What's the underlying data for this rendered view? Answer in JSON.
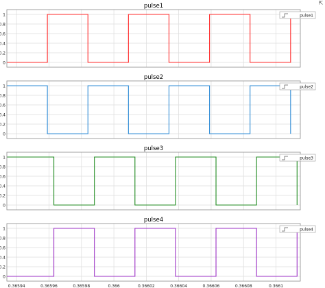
{
  "toolbar": {
    "undock_icon": "undock-arrow-icon"
  },
  "x_ticks": [
    "0.36594",
    "0.36596",
    "0.36598",
    "0.366",
    "0.36602",
    "0.36604",
    "0.36606",
    "0.36608",
    "0.3661"
  ],
  "y_ticks": [
    "0",
    "0.2",
    "0.4",
    "0.6",
    "0.8",
    "1"
  ],
  "chart_data": [
    {
      "type": "line",
      "title": "pulse1",
      "legend": "pulse1",
      "legend_position": "top-right",
      "grid": true,
      "color": "#ff2a2a",
      "xlim": [
        0.365934,
        0.366115
      ],
      "ylim": [
        -0.1,
        1.1
      ],
      "x": [
        0.365934,
        0.365959,
        0.365959,
        0.365984,
        0.365984,
        0.366009,
        0.366009,
        0.366034,
        0.366034,
        0.366059,
        0.366059,
        0.366084,
        0.366084,
        0.366109,
        0.366109
      ],
      "y": [
        0,
        0,
        1,
        1,
        0,
        0,
        1,
        1,
        0,
        0,
        1,
        1,
        0,
        0,
        1
      ]
    },
    {
      "type": "line",
      "title": "pulse2",
      "legend": "pulse2",
      "legend_position": "top-right",
      "grid": true,
      "color": "#2e8bd6",
      "xlim": [
        0.365934,
        0.366115
      ],
      "ylim": [
        -0.1,
        1.1
      ],
      "x": [
        0.365934,
        0.365959,
        0.365959,
        0.365984,
        0.365984,
        0.366009,
        0.366009,
        0.366034,
        0.366034,
        0.366059,
        0.366059,
        0.366084,
        0.366084,
        0.366109,
        0.366109
      ],
      "y": [
        1,
        1,
        0,
        0,
        1,
        1,
        0,
        0,
        1,
        1,
        0,
        0,
        1,
        1,
        0
      ]
    },
    {
      "type": "line",
      "title": "pulse3",
      "legend": "pulse3",
      "legend_position": "top-right",
      "grid": true,
      "color": "#1e8a1e",
      "xlim": [
        0.365934,
        0.366115
      ],
      "ylim": [
        -0.1,
        1.1
      ],
      "x": [
        0.365934,
        0.365963,
        0.365963,
        0.365988,
        0.365988,
        0.366013,
        0.366013,
        0.366038,
        0.366038,
        0.366063,
        0.366063,
        0.366088,
        0.366088,
        0.366113,
        0.366113
      ],
      "y": [
        1,
        1,
        0,
        0,
        1,
        1,
        0,
        0,
        1,
        1,
        0,
        0,
        1,
        1,
        0
      ]
    },
    {
      "type": "line",
      "title": "pulse4",
      "legend": "pulse4",
      "legend_position": "top-right",
      "grid": true,
      "color": "#9b2fc4",
      "xlim": [
        0.365934,
        0.366115
      ],
      "ylim": [
        -0.1,
        1.1
      ],
      "x": [
        0.365934,
        0.365963,
        0.365963,
        0.365988,
        0.365988,
        0.366013,
        0.366013,
        0.366038,
        0.366038,
        0.366063,
        0.366063,
        0.366088,
        0.366088,
        0.366113,
        0.366113
      ],
      "y": [
        0,
        0,
        1,
        1,
        0,
        0,
        1,
        1,
        0,
        0,
        1,
        1,
        0,
        0,
        1
      ]
    }
  ]
}
